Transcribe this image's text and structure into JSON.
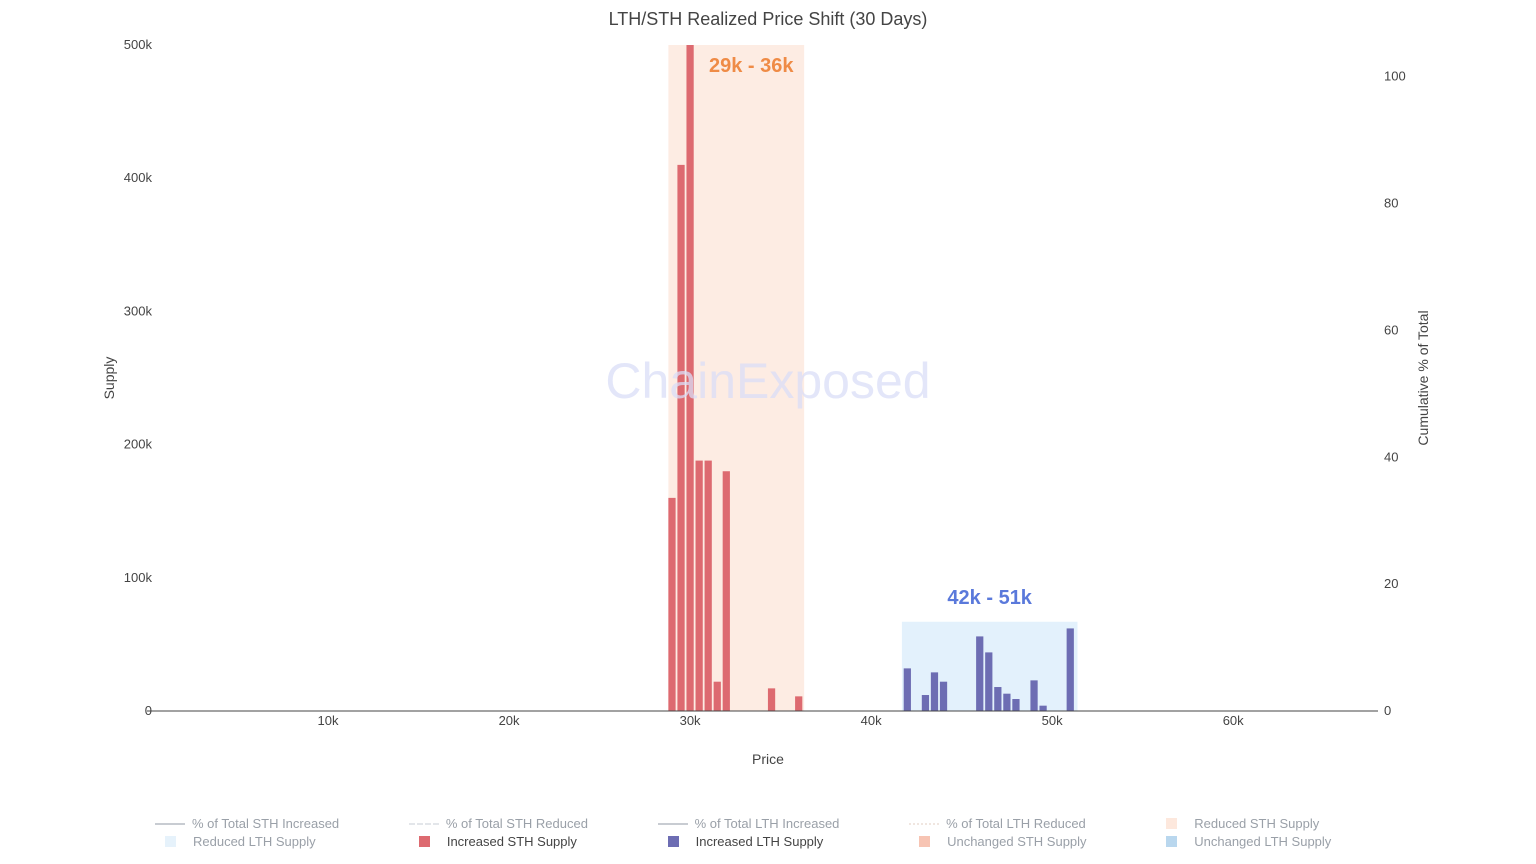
{
  "chart_data": {
    "type": "bar",
    "title": "LTH/STH Realized Price Shift (30 Days)",
    "xlabel": "Price",
    "ylabel": "Supply",
    "y2label": "Cumulative % of Total",
    "xlim": [
      0,
      68000
    ],
    "ylim": [
      0,
      500000
    ],
    "y2lim": [
      0,
      105
    ],
    "x_ticks": [
      {
        "v": 10000,
        "label": "10k"
      },
      {
        "v": 20000,
        "label": "20k"
      },
      {
        "v": 30000,
        "label": "30k"
      },
      {
        "v": 40000,
        "label": "40k"
      },
      {
        "v": 50000,
        "label": "50k"
      },
      {
        "v": 60000,
        "label": "60k"
      }
    ],
    "y_ticks": [
      {
        "v": 0,
        "label": "0"
      },
      {
        "v": 100000,
        "label": "100k"
      },
      {
        "v": 200000,
        "label": "200k"
      },
      {
        "v": 300000,
        "label": "300k"
      },
      {
        "v": 400000,
        "label": "400k"
      },
      {
        "v": 500000,
        "label": "500k"
      }
    ],
    "y2_ticks": [
      {
        "v": 0,
        "label": "0"
      },
      {
        "v": 20,
        "label": "20"
      },
      {
        "v": 40,
        "label": "40"
      },
      {
        "v": 60,
        "label": "60"
      },
      {
        "v": 80,
        "label": "80"
      },
      {
        "v": 100,
        "label": "100"
      }
    ],
    "bar_width": 400,
    "series": [
      {
        "name": "Increased STH Supply",
        "color": "#dd6a70",
        "x": [
          29000,
          29500,
          30000,
          30500,
          31000,
          31500,
          32000,
          34500,
          36000
        ],
        "values": [
          160000,
          410000,
          500000,
          188000,
          188000,
          22000,
          180000,
          17000,
          11000
        ]
      },
      {
        "name": "Increased LTH Supply",
        "color": "#6d6db3",
        "x": [
          42000,
          43000,
          43500,
          44000,
          46000,
          46500,
          47000,
          47500,
          48000,
          49000,
          49500,
          51000
        ],
        "values": [
          32000,
          12000,
          29000,
          22000,
          56000,
          44000,
          18000,
          13000,
          9000,
          23000,
          4000,
          62000
        ]
      }
    ],
    "highlight_regions": [
      {
        "label": "29k - 36k",
        "x0": 28800,
        "x1": 36300,
        "y_top": 500000,
        "fill": "#fdece3",
        "label_color": "#ef8b46"
      },
      {
        "label": "42k - 51k",
        "x0": 41700,
        "x1": 51400,
        "y_top": 67000,
        "fill": "#e3f1fc",
        "label_color": "#5a79db"
      }
    ],
    "watermark": "ChainExposed",
    "legend": [
      {
        "label": "% of Total STH Increased",
        "swatch": "line",
        "color": "#c8ccd2",
        "active": false
      },
      {
        "label": "% of Total STH Reduced",
        "swatch": "dash",
        "color": "#e3e6ea",
        "active": false
      },
      {
        "label": "% of Total LTH Increased",
        "swatch": "line",
        "color": "#c8ccd2",
        "active": false
      },
      {
        "label": "% of Total LTH Reduced",
        "swatch": "dot",
        "color": "#f0e6e0",
        "active": false
      },
      {
        "label": "Reduced STH Supply",
        "swatch": "box",
        "color": "#fde8dd",
        "active": false
      },
      {
        "label": "Reduced LTH Supply",
        "swatch": "box",
        "color": "#e6f2fb",
        "active": false
      },
      {
        "label": "Increased STH Supply",
        "swatch": "box",
        "color": "#dd6a70",
        "active": true
      },
      {
        "label": "Increased LTH Supply",
        "swatch": "box",
        "color": "#6d6db3",
        "active": true
      },
      {
        "label": "Unchanged STH Supply",
        "swatch": "box",
        "color": "#f7c4b3",
        "active": false
      },
      {
        "label": "Unchanged LTH Supply",
        "swatch": "box",
        "color": "#b9d7ee",
        "active": false
      }
    ]
  }
}
